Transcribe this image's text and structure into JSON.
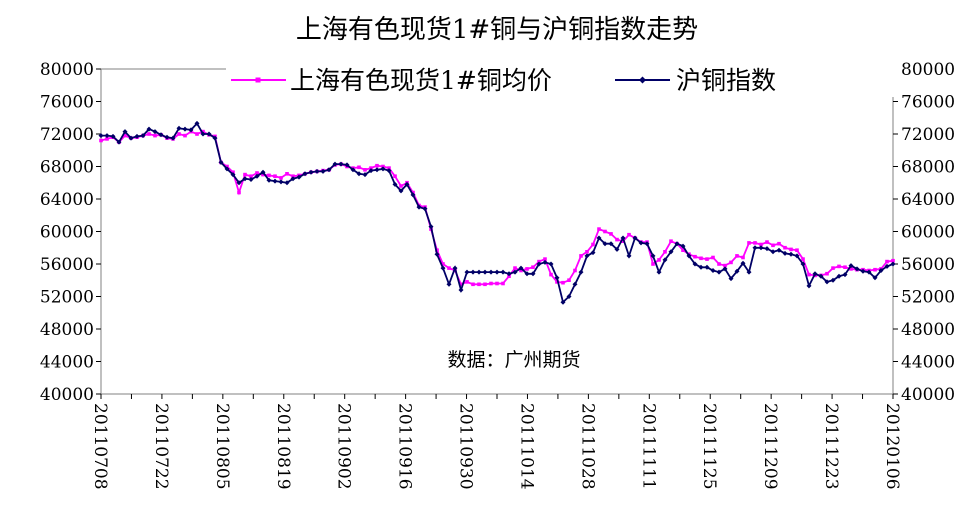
{
  "chart_data": {
    "type": "line",
    "title": "上海有色现货1#铜与沪铜指数走势",
    "source_note": "数据：广州期货",
    "x_ticks": [
      "20110708",
      "20110722",
      "20110805",
      "20110819",
      "20110902",
      "20110916",
      "20110930",
      "20111014",
      "20111028",
      "20111111",
      "20111125",
      "20111209",
      "20111223",
      "20120106"
    ],
    "ylim": [
      40000,
      80000
    ],
    "y_ticks": [
      40000,
      44000,
      48000,
      52000,
      56000,
      60000,
      64000,
      68000,
      72000,
      76000,
      80000
    ],
    "legend_position": "top",
    "grid": false,
    "colors": {
      "spot": "#ff00ff",
      "index": "#000066"
    },
    "series": [
      {
        "name": "上海有色现货1#铜均价",
        "values": [
          71200,
          71400,
          71600,
          71000,
          71800,
          71500,
          71600,
          71800,
          72000,
          71800,
          71900,
          71500,
          71400,
          72000,
          71800,
          72300,
          72000,
          72300,
          71900,
          71700,
          68500,
          68000,
          67300,
          64800,
          67000,
          66800,
          67200,
          67000,
          66900,
          66800,
          66600,
          67100,
          66800,
          66900,
          67100,
          67300,
          67400,
          67500,
          67600,
          68200,
          68300,
          68000,
          67800,
          67900,
          67600,
          67800,
          68100,
          68000,
          67800,
          66800,
          65600,
          66000,
          64800,
          63200,
          63000,
          60300,
          57700,
          56000,
          55500,
          55200,
          53500,
          53800,
          53500,
          53500,
          53500,
          53600,
          53600,
          53600,
          54500,
          55500,
          55200,
          55400,
          55600,
          56300,
          56600,
          54700,
          53800,
          53700,
          54000,
          55200,
          57000,
          57500,
          58400,
          60300,
          60000,
          59700,
          59000,
          58800,
          59600,
          59200,
          58700,
          58700,
          56000,
          56500,
          57500,
          58800,
          58500,
          57700,
          57200,
          56900,
          56700,
          56600,
          56800,
          56000,
          55800,
          56200,
          57000,
          56800,
          58600,
          58600,
          58400,
          58700,
          58300,
          58500,
          58000,
          57800,
          57700,
          56600,
          54700,
          54600,
          54600,
          54800,
          55500,
          55700,
          55600,
          55400,
          55300,
          55300,
          55200,
          55300,
          55400,
          56300,
          56400
        ]
      },
      {
        "name": "沪铜指数",
        "values": [
          71800,
          71800,
          71700,
          71000,
          72300,
          71500,
          71700,
          71800,
          72600,
          72300,
          71900,
          71600,
          71500,
          72700,
          72600,
          72500,
          73300,
          72000,
          72000,
          71500,
          68500,
          67700,
          67000,
          66000,
          66500,
          66400,
          66800,
          67300,
          66300,
          66200,
          66100,
          66000,
          66500,
          66700,
          67100,
          67300,
          67400,
          67400,
          67600,
          68300,
          68300,
          68200,
          67600,
          67100,
          67000,
          67500,
          67600,
          67700,
          67500,
          65800,
          65000,
          65800,
          64500,
          63000,
          62800,
          60600,
          57200,
          55500,
          53500,
          55500,
          52800,
          55000,
          55000,
          55000,
          55000,
          55000,
          55000,
          55000,
          54800,
          55000,
          55500,
          54800,
          54800,
          56000,
          56200,
          56000,
          54300,
          51300,
          52000,
          53500,
          55000,
          57000,
          57400,
          59200,
          58500,
          58500,
          57800,
          59200,
          57000,
          59200,
          58600,
          58500,
          57000,
          55000,
          56500,
          57500,
          58500,
          58200,
          57000,
          56000,
          55600,
          55600,
          55200,
          55000,
          55400,
          54200,
          55100,
          56100,
          55000,
          58000,
          58000,
          57900,
          57500,
          57700,
          57300,
          57200,
          57000,
          56000,
          53300,
          54800,
          54500,
          53800,
          54000,
          54500,
          54700,
          55800,
          55400,
          55100,
          55000,
          54300,
          55200,
          55700,
          56000
        ]
      }
    ]
  }
}
